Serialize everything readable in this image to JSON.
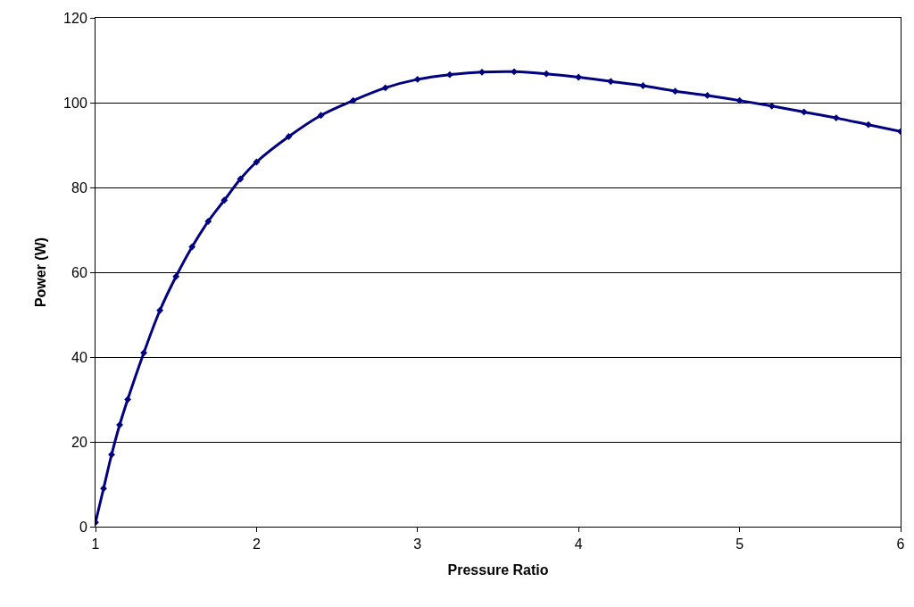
{
  "chart_data": {
    "type": "line",
    "xlabel": "Pressure Ratio",
    "ylabel": "Power (W)",
    "x": [
      1.0,
      1.05,
      1.1,
      1.15,
      1.2,
      1.3,
      1.4,
      1.5,
      1.6,
      1.7,
      1.8,
      1.9,
      2.0,
      2.2,
      2.4,
      2.6,
      2.8,
      3.0,
      3.2,
      3.4,
      3.6,
      3.8,
      4.0,
      4.2,
      4.4,
      4.6,
      4.8,
      5.0,
      5.2,
      5.4,
      5.6,
      5.8,
      6.0
    ],
    "series": [
      {
        "color": "#000080",
        "values": [
          1,
          9,
          17,
          24,
          30,
          41,
          51,
          59,
          66,
          72,
          77,
          82,
          86,
          92,
          97,
          100.5,
          103.5,
          105.5,
          106.6,
          107.2,
          107.3,
          106.8,
          106,
          105,
          104,
          102.7,
          101.7,
          100.5,
          99.2,
          97.8,
          96.4,
          94.8,
          93.2
        ]
      }
    ],
    "xlim": [
      1,
      6
    ],
    "xticks": [
      1,
      2,
      3,
      4,
      5,
      6
    ],
    "ylim": [
      0,
      120
    ],
    "yticks": [
      0,
      20,
      40,
      60,
      80,
      100,
      120
    ],
    "grid": "y",
    "marker": "diamond",
    "line_style": "solid"
  }
}
